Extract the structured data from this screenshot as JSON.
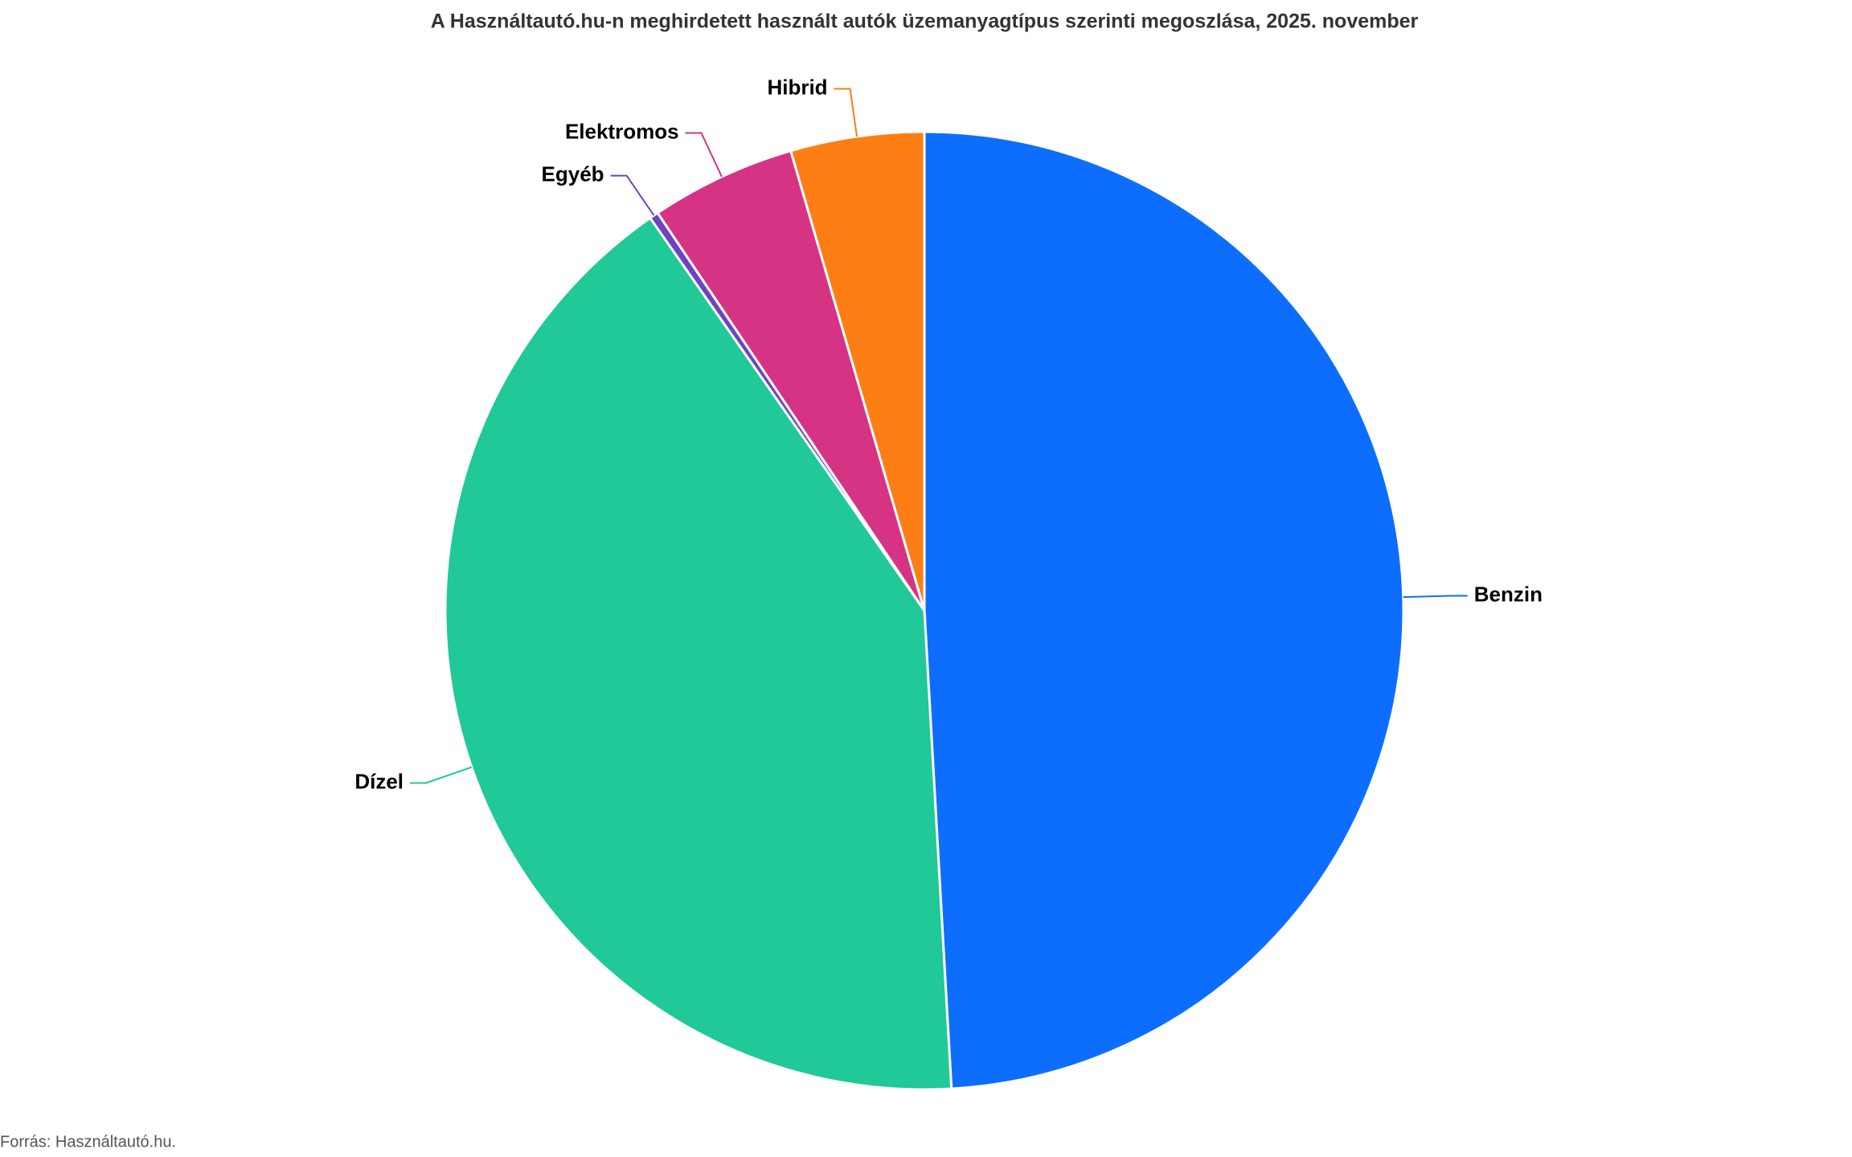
{
  "chart_data": {
    "type": "pie",
    "title": "A Használtautó.hu-n meghirdetett használt autók üzemanyagtípus szerinti megoszlása, 2025. november",
    "categories": [
      "Benzin",
      "Dízel",
      "Egyéb",
      "Elektromos",
      "Hibrid"
    ],
    "values": [
      49.1,
      41.2,
      0.3,
      4.9,
      4.5
    ],
    "colors": [
      "#0d6efd",
      "#20c997",
      "#6f42c1",
      "#d63384",
      "#fd7e14"
    ],
    "source": "Forrás: Használtautó.hu."
  }
}
